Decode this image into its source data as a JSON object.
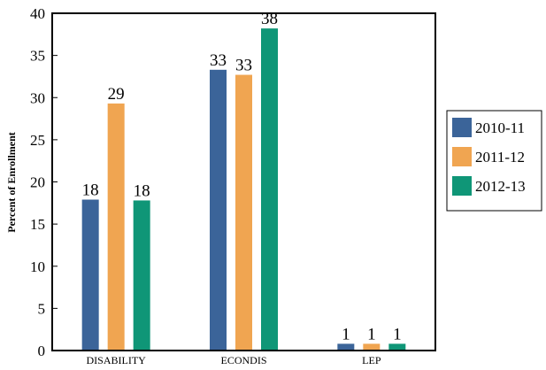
{
  "chart_data": {
    "type": "bar",
    "title": "",
    "xlabel": "",
    "ylabel": "Percent of Enrollment",
    "categories": [
      "DISABILITY",
      "ECONDIS",
      "LEP"
    ],
    "series": [
      {
        "name": "2010-11",
        "color": "#3b6499",
        "values": [
          17.9,
          33.3,
          0.8
        ],
        "labels": [
          "18",
          "33",
          "1"
        ]
      },
      {
        "name": "2011-12",
        "color": "#f0a551",
        "values": [
          29.3,
          32.7,
          0.8
        ],
        "labels": [
          "29",
          "33",
          "1"
        ]
      },
      {
        "name": "2012-13",
        "color": "#0f9677",
        "values": [
          17.8,
          38.2,
          0.8
        ],
        "labels": [
          "18",
          "38",
          "1"
        ]
      }
    ],
    "ylim": [
      0,
      40
    ],
    "yticks": [
      0,
      5,
      10,
      15,
      20,
      25,
      30,
      35,
      40
    ],
    "grid": false,
    "legend_position": "right"
  }
}
